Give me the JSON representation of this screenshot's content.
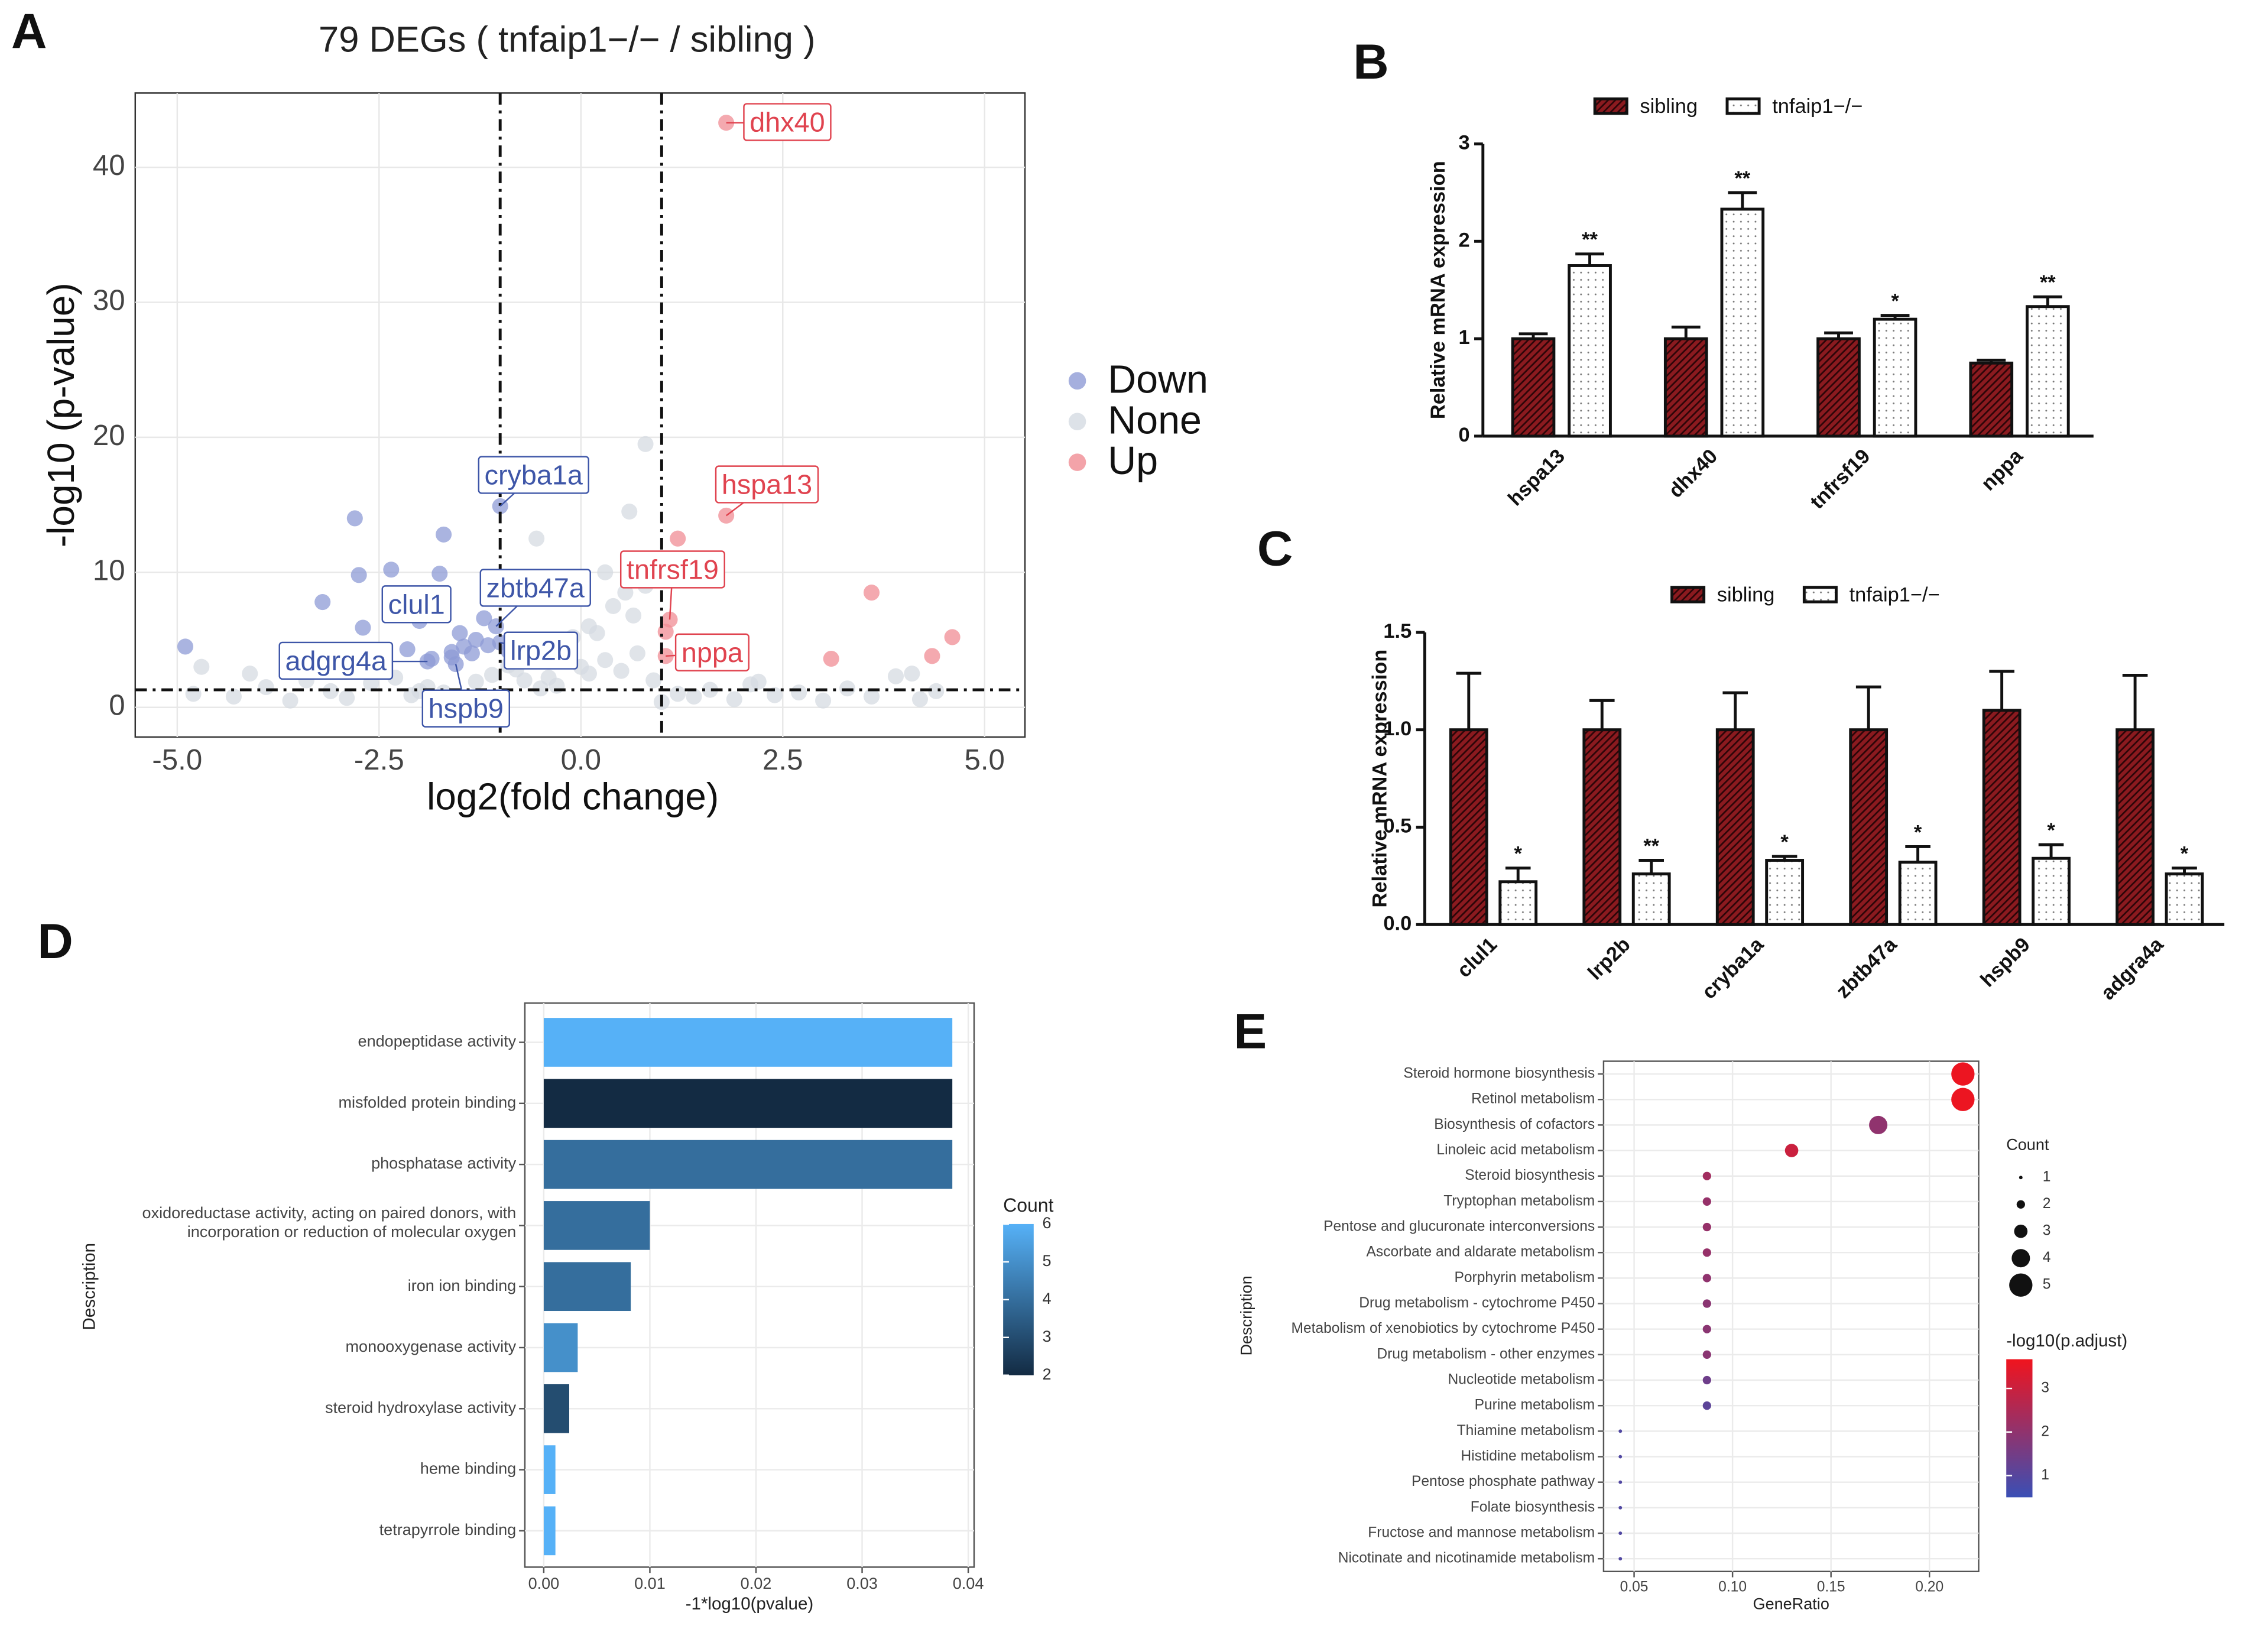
{
  "chart_data": [
    {
      "type": "scatter",
      "panel": "A",
      "title": "79 DEGs ( tnfaip1−/− / sibling )",
      "xlabel": "log2(fold change)",
      "ylabel": "-log10 (p-value)",
      "xlim": [
        -5.52,
        5.5
      ],
      "ylim": [
        -2.2,
        45.5
      ],
      "xticks": [
        {
          "value": -5,
          "label": "-5.0"
        },
        {
          "value": -2.5,
          "label": "-2.5"
        },
        {
          "value": 0,
          "label": "0.0"
        },
        {
          "value": 2.5,
          "label": "2.5"
        },
        {
          "value": 5,
          "label": "5.0"
        }
      ],
      "yticks": [
        0,
        10,
        20,
        30,
        40
      ],
      "grid": true,
      "vlines": [
        -1,
        1
      ],
      "hline": 1.3,
      "series": [
        {
          "name": "Down",
          "color": "#8e9bd6",
          "x": [
            -4.9,
            -2.8,
            -1.7,
            -2.75,
            -2.35,
            -1.75,
            -3.2,
            -2.7,
            -1.0,
            -2.0,
            -1.5,
            -1.2,
            -1.05,
            -1.3,
            -1.45,
            -1.6,
            -1.85,
            -1.55,
            -1.15,
            -1.0,
            -0.9,
            -2.15,
            -1.35,
            -1.9,
            -1.6
          ],
          "values": [
            4.5,
            14.0,
            12.8,
            9.8,
            10.2,
            9.9,
            7.8,
            5.9,
            14.9,
            6.4,
            5.5,
            6.6,
            6.0,
            5.0,
            4.5,
            4.1,
            3.6,
            3.2,
            4.6,
            4.8,
            4.2,
            4.3,
            4.0,
            3.4,
            3.7
          ],
          "labels": [
            null,
            null,
            null,
            null,
            null,
            null,
            null,
            null,
            "cryba1a",
            "clul1",
            null,
            null,
            "zbtb47a",
            null,
            null,
            null,
            null,
            "hspb9",
            null,
            "lrp2b",
            null,
            null,
            null,
            "adgrg4a",
            null
          ],
          "label_color": "#3e56a8"
        },
        {
          "name": "None",
          "color": "#d5dbe2",
          "x": [
            -4.8,
            -4.3,
            -4.1,
            -3.9,
            -3.6,
            -3.4,
            -3.1,
            -2.9,
            -2.6,
            -2.3,
            -2.1,
            -1.9,
            -1.7,
            -1.5,
            -1.3,
            -1.1,
            -0.9,
            -0.7,
            -0.5,
            -0.3,
            -0.1,
            0.1,
            0.3,
            0.5,
            0.7,
            0.9,
            1.2,
            1.4,
            1.6,
            1.9,
            2.1,
            2.4,
            2.7,
            3.0,
            3.3,
            3.6,
            3.9,
            4.2,
            4.4,
            -0.8,
            -0.6,
            -0.4,
            -0.2,
            0.0,
            0.2,
            0.4,
            0.6,
            0.8,
            0.55,
            0.8,
            -0.55,
            0.3,
            0.1,
            -0.3,
            0.65,
            -4.7,
            4.1,
            2.2,
            -2.0,
            1.0
          ],
          "values": [
            1.0,
            0.8,
            2.5,
            1.5,
            0.5,
            2.0,
            1.2,
            0.7,
            1.8,
            2.2,
            0.9,
            1.5,
            1.1,
            0.6,
            1.9,
            2.4,
            3.1,
            2.0,
            1.4,
            4.5,
            5.2,
            6.0,
            3.5,
            2.7,
            4.0,
            2.0,
            1.0,
            0.8,
            1.3,
            0.6,
            1.7,
            0.9,
            1.1,
            0.5,
            1.4,
            0.8,
            2.3,
            0.6,
            1.2,
            2.8,
            3.6,
            2.2,
            4.8,
            3.0,
            5.5,
            7.5,
            14.5,
            19.5,
            8.5,
            9.0,
            12.5,
            10.0,
            2.5,
            1.6,
            6.8,
            3.0,
            2.5,
            1.9,
            1.2,
            0.4
          ]
        },
        {
          "name": "Up",
          "color": "#f08c94",
          "x": [
            1.8,
            1.8,
            1.2,
            1.1,
            1.05,
            3.6,
            4.6,
            4.35,
            3.1,
            1.05
          ],
          "values": [
            43.3,
            14.2,
            12.5,
            6.5,
            3.8,
            8.5,
            5.2,
            3.8,
            3.6,
            5.6
          ],
          "labels": [
            "dhx40",
            "hspa13",
            null,
            "tnfrsf19",
            "nppa",
            null,
            null,
            null,
            null,
            null
          ],
          "label_color": "#e0434f"
        }
      ]
    },
    {
      "type": "bar",
      "panel": "B",
      "ylabel": "Relative mRNA expression",
      "categories": [
        "hspa13",
        "dhx40",
        "tnfrsf19",
        "nppa"
      ],
      "ylim": [
        0,
        3
      ],
      "yticks": [
        0,
        1,
        2,
        3
      ],
      "significance": [
        "**",
        "**",
        "*",
        "**"
      ],
      "series": [
        {
          "name": "sibling",
          "color": "#8b1a1f",
          "pattern": "hatch",
          "values": [
            1.0,
            1.0,
            1.0,
            0.75
          ],
          "errors": [
            0.05,
            0.12,
            0.06,
            0.03
          ]
        },
        {
          "name": "tnfaip1−/−",
          "color": "#ffffff",
          "pattern": "dots",
          "values": [
            1.75,
            2.33,
            1.2,
            1.33
          ],
          "errors": [
            0.12,
            0.17,
            0.04,
            0.1
          ]
        }
      ]
    },
    {
      "type": "bar",
      "panel": "C",
      "ylabel": "Relative mRNA expression",
      "categories": [
        "clul1",
        "lrp2b",
        "cryba1a",
        "zbtb47a",
        "hspb9",
        "adgra4a"
      ],
      "ylim": [
        0,
        1.5
      ],
      "yticks": [
        {
          "value": 0,
          "label": "0.0"
        },
        0.5,
        {
          "value": 1,
          "label": "1.0"
        },
        1.5
      ],
      "significance": [
        "*",
        "**",
        "*",
        "*",
        "*",
        "*"
      ],
      "series": [
        {
          "name": "sibling",
          "color": "#8b1a1f",
          "pattern": "hatch",
          "values": [
            1.0,
            1.0,
            1.0,
            1.0,
            1.1,
            1.0
          ],
          "errors": [
            0.29,
            0.15,
            0.19,
            0.22,
            0.2,
            0.28
          ]
        },
        {
          "name": "tnfaip1−/−",
          "color": "#ffffff",
          "pattern": "dots",
          "values": [
            0.22,
            0.26,
            0.33,
            0.32,
            0.34,
            0.26
          ],
          "errors": [
            0.07,
            0.07,
            0.02,
            0.08,
            0.07,
            0.03
          ]
        }
      ]
    },
    {
      "type": "barh",
      "panel": "D",
      "xlabel": "-1*log10(pvalue)",
      "ylabel": "Description",
      "categories": [
        "endopeptidase activity",
        "misfolded protein binding",
        "phosphatase activity",
        "oxidoreductase activity, acting on paired donors, with incorporation or reduction of molecular oxygen",
        "iron ion binding",
        "monooxygenase activity",
        "steroid hydroxylase activity",
        "heme binding",
        "tetrapyrrole binding"
      ],
      "values": [
        0.0385,
        0.0385,
        0.0385,
        0.01,
        0.0082,
        0.0032,
        0.0024,
        0.0011,
        0.0011
      ],
      "counts": [
        6,
        2,
        4,
        4,
        4,
        5,
        3,
        6,
        6
      ],
      "xlim": [
        -0.00178,
        0.04055
      ],
      "xticks": [
        {
          "value": 0,
          "label": "0.00"
        },
        0.01,
        0.02,
        0.03,
        0.04
      ],
      "grid": true,
      "colorbar": {
        "title": "Count",
        "lim": [
          2,
          6
        ],
        "ticks": [
          2,
          3,
          4,
          5,
          6
        ],
        "low": "#132b43",
        "high": "#56b1f7"
      }
    },
    {
      "type": "dot",
      "panel": "E",
      "xlabel": "GeneRatio",
      "ylabel": "Description",
      "categories": [
        "Steroid hormone biosynthesis",
        "Retinol metabolism",
        "Biosynthesis of cofactors",
        "Linoleic acid metabolism",
        "Steroid biosynthesis",
        "Tryptophan metabolism",
        "Pentose and glucuronate interconversions",
        "Ascorbate and aldarate metabolism",
        "Porphyrin metabolism",
        "Drug metabolism - cytochrome P450",
        "Metabolism of xenobiotics by cytochrome P450",
        "Drug metabolism - other enzymes",
        "Nucleotide metabolism",
        "Purine metabolism",
        "Thiamine metabolism",
        "Histidine metabolism",
        "Pentose phosphate pathway",
        "Folate biosynthesis",
        "Fructose and mannose metabolism",
        "Nicotinate and nicotinamide metabolism"
      ],
      "values": [
        0.217,
        0.217,
        0.174,
        0.13,
        0.087,
        0.087,
        0.087,
        0.087,
        0.087,
        0.087,
        0.087,
        0.087,
        0.087,
        0.087,
        0.043,
        0.043,
        0.043,
        0.043,
        0.043,
        0.043
      ],
      "counts": [
        5,
        5,
        4,
        3,
        2,
        2,
        2,
        2,
        2,
        2,
        2,
        2,
        2,
        2,
        1,
        1,
        1,
        1,
        1,
        1
      ],
      "color_values": [
        3.6,
        3.6,
        2.0,
        3.0,
        2.3,
        2.1,
        2.1,
        2.1,
        2.0,
        1.9,
        1.9,
        1.9,
        1.4,
        1.1,
        0.9,
        0.9,
        0.9,
        0.9,
        0.9,
        0.9
      ],
      "xlim": [
        0.0345,
        0.225
      ],
      "xticks": [
        0.05,
        {
          "value": 0.1,
          "label": "0.10"
        },
        0.15,
        {
          "value": 0.2,
          "label": "0.20"
        }
      ],
      "grid": true,
      "size_legend": {
        "title": "Count",
        "values": [
          1,
          2,
          3,
          4,
          5
        ]
      },
      "colorbar": {
        "title": "-log10(p.adjust)",
        "lim": [
          0.5,
          3.67
        ],
        "ticks": [
          1,
          2,
          3
        ],
        "low": "#3a4fb5",
        "high": "#f0141e"
      }
    }
  ]
}
